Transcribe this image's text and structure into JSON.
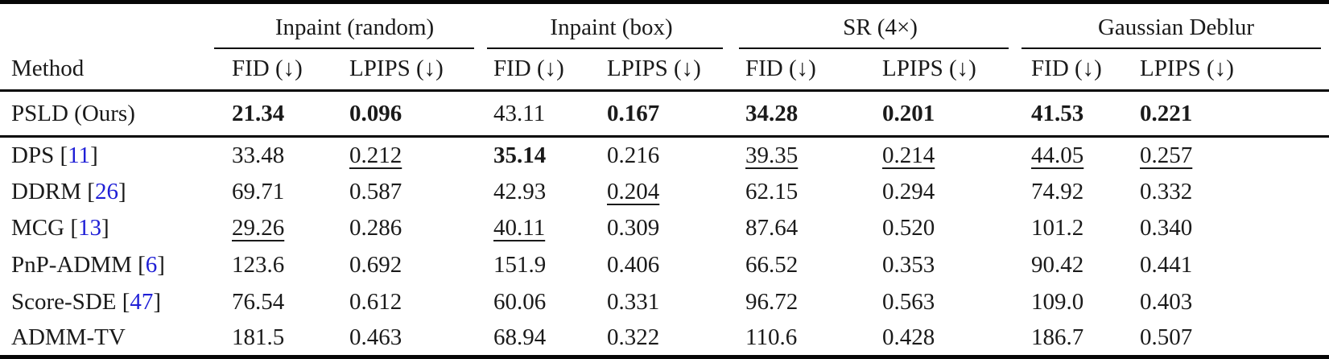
{
  "table": {
    "method_header": "Method",
    "groups": [
      {
        "label": "Inpaint (random)",
        "metrics": [
          "FID (↓)",
          "LPIPS (↓)"
        ]
      },
      {
        "label": "Inpaint (box)",
        "metrics": [
          "FID (↓)",
          "LPIPS (↓)"
        ]
      },
      {
        "label": "SR (4×)",
        "metrics": [
          "FID (↓)",
          "LPIPS (↓)"
        ]
      },
      {
        "label": "Gaussian Deblur",
        "metrics": [
          "FID (↓)",
          "LPIPS (↓)"
        ]
      }
    ],
    "colors": {
      "citation_blue": "#1f1fd6",
      "text": "#1a1a1a",
      "rule": "#060606"
    },
    "rows": [
      {
        "method": "PSLD (Ours)",
        "cite": "",
        "values": [
          {
            "v": "21.34",
            "s": "b"
          },
          {
            "v": "0.096",
            "s": "b"
          },
          {
            "v": "43.11",
            "s": ""
          },
          {
            "v": "0.167",
            "s": "b"
          },
          {
            "v": "34.28",
            "s": "b"
          },
          {
            "v": "0.201",
            "s": "b"
          },
          {
            "v": "41.53",
            "s": "b"
          },
          {
            "v": "0.221",
            "s": "b"
          }
        ]
      },
      {
        "method": "DPS",
        "cite": "11",
        "values": [
          {
            "v": "33.48",
            "s": ""
          },
          {
            "v": "0.212",
            "s": "u"
          },
          {
            "v": "35.14",
            "s": "b"
          },
          {
            "v": "0.216",
            "s": ""
          },
          {
            "v": "39.35",
            "s": "u"
          },
          {
            "v": "0.214",
            "s": "u"
          },
          {
            "v": "44.05",
            "s": "u"
          },
          {
            "v": "0.257",
            "s": "u"
          }
        ]
      },
      {
        "method": "DDRM",
        "cite": "26",
        "values": [
          {
            "v": "69.71",
            "s": ""
          },
          {
            "v": "0.587",
            "s": ""
          },
          {
            "v": "42.93",
            "s": ""
          },
          {
            "v": "0.204",
            "s": "u"
          },
          {
            "v": "62.15",
            "s": ""
          },
          {
            "v": "0.294",
            "s": ""
          },
          {
            "v": "74.92",
            "s": ""
          },
          {
            "v": "0.332",
            "s": ""
          }
        ]
      },
      {
        "method": "MCG",
        "cite": "13",
        "values": [
          {
            "v": "29.26",
            "s": "u"
          },
          {
            "v": "0.286",
            "s": ""
          },
          {
            "v": "40.11",
            "s": "u"
          },
          {
            "v": "0.309",
            "s": ""
          },
          {
            "v": "87.64",
            "s": ""
          },
          {
            "v": "0.520",
            "s": ""
          },
          {
            "v": "101.2",
            "s": ""
          },
          {
            "v": "0.340",
            "s": ""
          }
        ]
      },
      {
        "method": "PnP-ADMM",
        "cite": "6",
        "values": [
          {
            "v": "123.6",
            "s": ""
          },
          {
            "v": "0.692",
            "s": ""
          },
          {
            "v": "151.9",
            "s": ""
          },
          {
            "v": "0.406",
            "s": ""
          },
          {
            "v": "66.52",
            "s": ""
          },
          {
            "v": "0.353",
            "s": ""
          },
          {
            "v": "90.42",
            "s": ""
          },
          {
            "v": "0.441",
            "s": ""
          }
        ]
      },
      {
        "method": "Score-SDE",
        "cite": "47",
        "values": [
          {
            "v": "76.54",
            "s": ""
          },
          {
            "v": "0.612",
            "s": ""
          },
          {
            "v": "60.06",
            "s": ""
          },
          {
            "v": "0.331",
            "s": ""
          },
          {
            "v": "96.72",
            "s": ""
          },
          {
            "v": "0.563",
            "s": ""
          },
          {
            "v": "109.0",
            "s": ""
          },
          {
            "v": "0.403",
            "s": ""
          }
        ]
      },
      {
        "method": "ADMM-TV",
        "cite": "",
        "values": [
          {
            "v": "181.5",
            "s": ""
          },
          {
            "v": "0.463",
            "s": ""
          },
          {
            "v": "68.94",
            "s": ""
          },
          {
            "v": "0.322",
            "s": ""
          },
          {
            "v": "110.6",
            "s": ""
          },
          {
            "v": "0.428",
            "s": ""
          },
          {
            "v": "186.7",
            "s": ""
          },
          {
            "v": "0.507",
            "s": ""
          }
        ]
      }
    ]
  }
}
